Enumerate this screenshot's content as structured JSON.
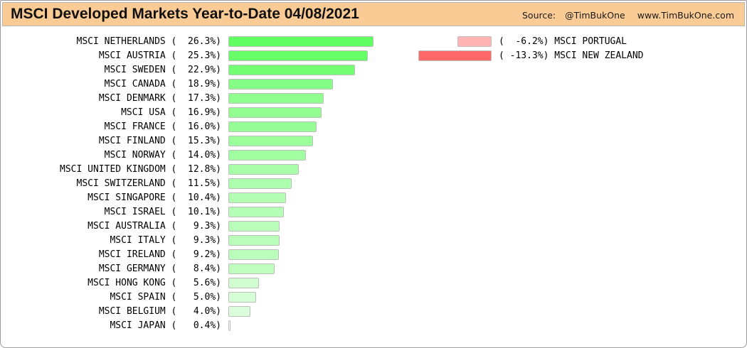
{
  "header": {
    "title": "MSCI Developed Markets Year-to-Date 04/08/2021",
    "source_label": "Source:",
    "source_handle": "@TimBukOne",
    "source_url": "www.TimBukOne.com",
    "background_color": "#FBCB95"
  },
  "chart_data": {
    "type": "bar",
    "orientation": "horizontal",
    "title": "MSCI Developed Markets Year-to-Date 04/08/2021",
    "value_unit": "%",
    "label_format": "NAME ( %5.1f%)",
    "legend_position": "none",
    "grid": false,
    "positive_series": [
      {
        "label": "MSCI NETHERLANDS",
        "value": 26.3,
        "color": "#60FE60"
      },
      {
        "label": "MSCI AUSTRIA",
        "value": 25.3,
        "color": "#67FE67"
      },
      {
        "label": "MSCI SWEDEN",
        "value": 22.9,
        "color": "#73FE73"
      },
      {
        "label": "MSCI CANADA",
        "value": 18.9,
        "color": "#86FE86"
      },
      {
        "label": "MSCI DENMARK",
        "value": 17.3,
        "color": "#8FFE8F"
      },
      {
        "label": "MSCI USA",
        "value": 16.9,
        "color": "#92FE92"
      },
      {
        "label": "MSCI FRANCE",
        "value": 16.0,
        "color": "#96FE96"
      },
      {
        "label": "MSCI FINLAND",
        "value": 15.3,
        "color": "#9AFE9A"
      },
      {
        "label": "MSCI NORWAY",
        "value": 14.0,
        "color": "#A0FEA0"
      },
      {
        "label": "MSCI UNITED KINGDOM",
        "value": 12.8,
        "color": "#A7FEA7"
      },
      {
        "label": "MSCI SWITZERLAND",
        "value": 11.5,
        "color": "#ADFEAD"
      },
      {
        "label": "MSCI SINGAPORE",
        "value": 10.4,
        "color": "#B3FEB3"
      },
      {
        "label": "MSCI ISRAEL",
        "value": 10.1,
        "color": "#B5FEB5"
      },
      {
        "label": "MSCI AUSTRALIA",
        "value": 9.3,
        "color": "#B9FEB9"
      },
      {
        "label": "MSCI ITALY",
        "value": 9.3,
        "color": "#BAFEBA"
      },
      {
        "label": "MSCI IRELAND",
        "value": 9.2,
        "color": "#BBFEBB"
      },
      {
        "label": "MSCI GERMANY",
        "value": 8.4,
        "color": "#C0FEC0"
      },
      {
        "label": "MSCI HONG KONG",
        "value": 5.6,
        "color": "#D1FED1"
      },
      {
        "label": "MSCI SPAIN",
        "value": 5.0,
        "color": "#D5FED5"
      },
      {
        "label": "MSCI BELGIUM",
        "value": 4.0,
        "color": "#DBFEDB"
      },
      {
        "label": "MSCI JAPAN",
        "value": 0.4,
        "color": "#F7FEF7"
      }
    ],
    "negative_series": [
      {
        "label": "MSCI PORTUGAL",
        "value": -6.2,
        "color": "#FFB3B3"
      },
      {
        "label": "MSCI NEW ZEALAND",
        "value": -13.3,
        "color": "#FF6868"
      }
    ]
  }
}
